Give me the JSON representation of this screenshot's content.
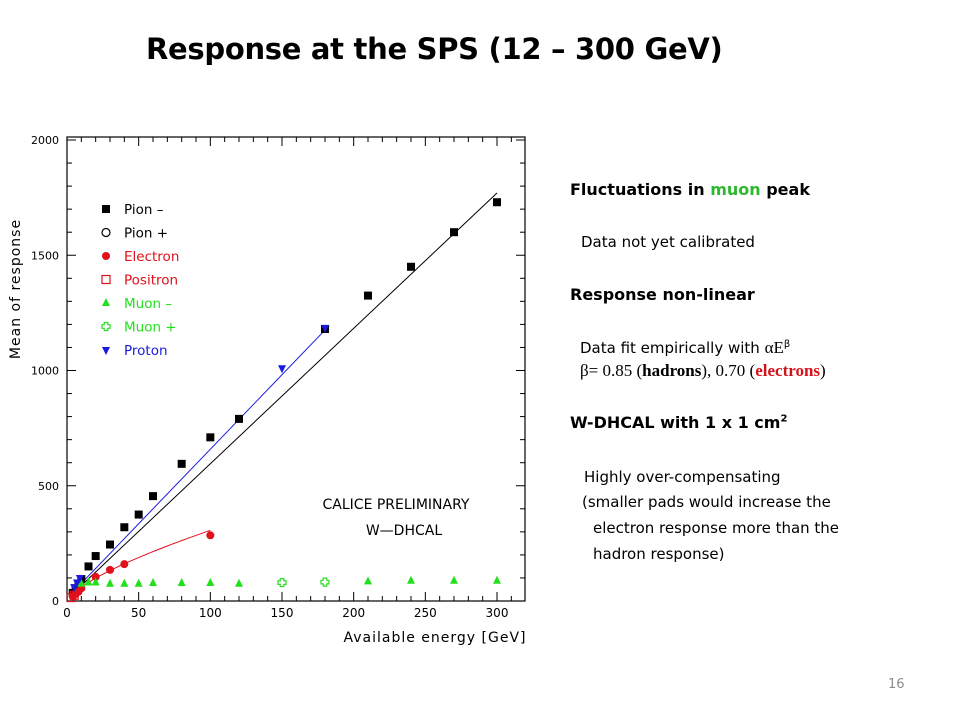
{
  "slide": {
    "title": "Response at the SPS (12 – 300 GeV)",
    "page_number": "16"
  },
  "notes": {
    "h1_prefix": "Fluctuations in ",
    "h1_highlight": "muon",
    "h1_suffix": " peak",
    "note1": "Data not yet calibrated",
    "h2": "Response non-linear",
    "note2_prefix": "Data fit empirically with ",
    "note2_formula": "αE",
    "note2_exp": "β",
    "beta_line_prefix": "β= 0.85  (",
    "beta_hadrons": "hadrons",
    "beta_line_mid": "), 0.70 (",
    "beta_electrons": "electrons",
    "beta_line_suffix": ")",
    "h3_prefix": "W-DHCAL with 1 x 1 cm",
    "h3_sup": "2",
    "note3_line1": "Highly over-compensating",
    "note3_line2": "(smaller pads would increase the",
    "note3_line3": "electron response more than the",
    "note3_line4": "hadron response)"
  },
  "colors": {
    "black": "#000000",
    "red": "#e0101c",
    "green": "#22e01c",
    "blue": "#1a1adc"
  },
  "chart_data": {
    "type": "scatter",
    "xlabel": "Available energy [GeV]",
    "ylabel": "Mean of response",
    "xlim": [
      0,
      320
    ],
    "ylim": [
      0,
      2000
    ],
    "x_ticks": [
      0,
      50,
      100,
      150,
      200,
      250,
      300
    ],
    "y_ticks": [
      0,
      500,
      1000,
      1500,
      2000
    ],
    "annotation_line1": "CALICE PRELIMINARY",
    "annotation_line2": "W—DHCAL",
    "legend_position": "top-left",
    "series": [
      {
        "name": "Pion –",
        "marker": "filled-square",
        "color": "#000000",
        "x": [
          4,
          6,
          8,
          10,
          15,
          20,
          30,
          40,
          50,
          60,
          80,
          100,
          120,
          180,
          210,
          240,
          270,
          300
        ],
        "y": [
          35,
          55,
          72,
          95,
          150,
          195,
          245,
          320,
          375,
          455,
          595,
          710,
          790,
          1180,
          1325,
          1450,
          1600,
          1730
        ]
      },
      {
        "name": "Pion +",
        "marker": "open-circle",
        "color": "#000000",
        "x": [],
        "y": []
      },
      {
        "name": "Electron",
        "marker": "filled-circle",
        "color": "#e0101c",
        "x": [
          4,
          6,
          8,
          10,
          20,
          30,
          40,
          100
        ],
        "y": [
          20,
          30,
          40,
          55,
          105,
          135,
          160,
          285
        ]
      },
      {
        "name": "Positron",
        "marker": "open-square",
        "color": "#e0101c",
        "x": [
          3,
          5
        ],
        "y": [
          15,
          25
        ]
      },
      {
        "name": "Muon –",
        "marker": "filled-triangle-up",
        "color": "#22e01c",
        "x": [
          10,
          15,
          20,
          30,
          40,
          50,
          60,
          80,
          100,
          120,
          210,
          240,
          270,
          300
        ],
        "y": [
          75,
          80,
          80,
          75,
          75,
          75,
          78,
          78,
          78,
          75,
          85,
          88,
          88,
          88
        ]
      },
      {
        "name": "Muon +",
        "marker": "open-cross",
        "color": "#22e01c",
        "x": [
          150,
          180
        ],
        "y": [
          80,
          82
        ]
      },
      {
        "name": "Proton",
        "marker": "filled-triangle-down",
        "color": "#1a1adc",
        "x": [
          5,
          7,
          9,
          150,
          180
        ],
        "y": [
          60,
          80,
          100,
          1010,
          1185
        ]
      }
    ],
    "fits": [
      {
        "name": "Pion fit",
        "color": "#000000",
        "x": [
          2,
          300
        ],
        "y": [
          20,
          1770
        ]
      },
      {
        "name": "Proton fit",
        "color": "#1a1adc",
        "x": [
          2,
          183
        ],
        "y": [
          25,
          1195
        ]
      },
      {
        "name": "Electron fit",
        "color": "#e0101c",
        "model": "power",
        "a": 12.2,
        "b": 0.7,
        "x_range": [
          2,
          100
        ]
      }
    ]
  }
}
